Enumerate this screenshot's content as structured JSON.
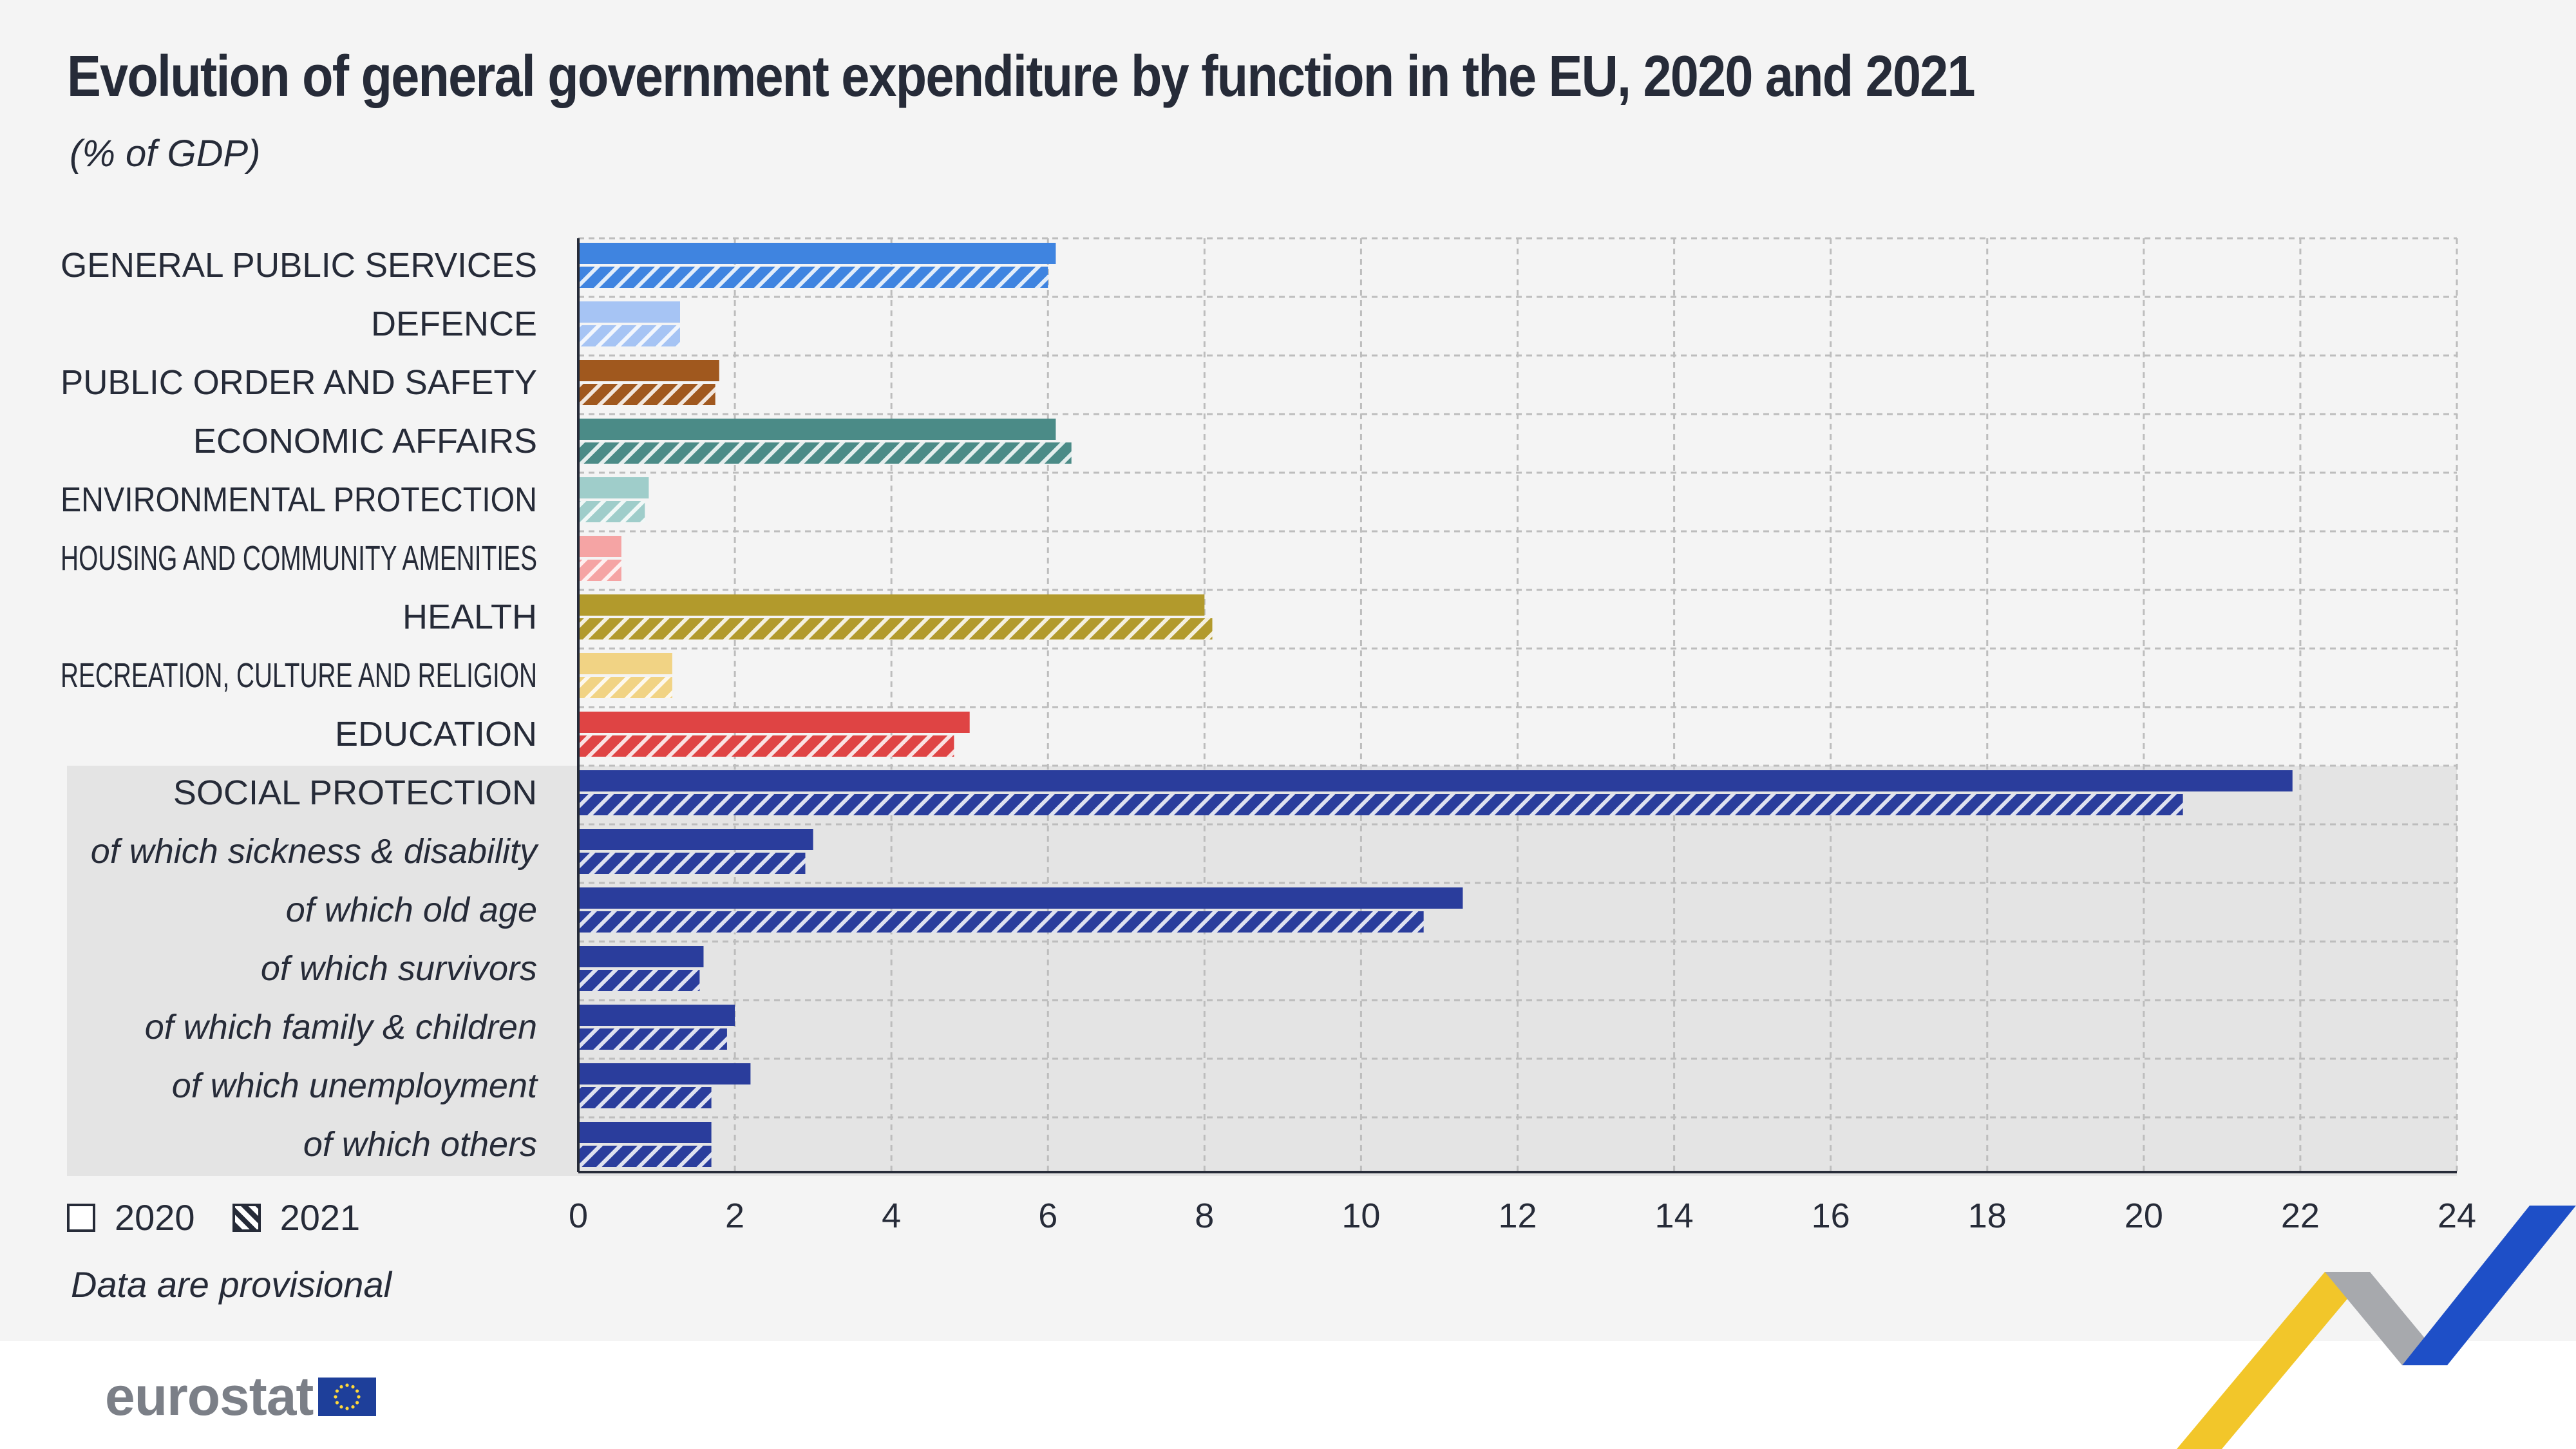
{
  "title": "Evolution of general government expenditure by function in the EU, 2020 and 2021",
  "subtitle": "(% of GDP)",
  "note": "Data are provisional",
  "logo_text": "eurostat",
  "legend": {
    "series_2020": "2020",
    "series_2021": "2021"
  },
  "chart_data": {
    "type": "bar",
    "orientation": "horizontal",
    "categories": [
      "GENERAL PUBLIC SERVICES",
      "DEFENCE",
      "PUBLIC ORDER AND SAFETY",
      "ECONOMIC AFFAIRS",
      "ENVIRONMENTAL PROTECTION",
      "HOUSING AND COMMUNITY AMENITIES",
      "HEALTH",
      "RECREATION, CULTURE AND RELIGION",
      "EDUCATION",
      "SOCIAL PROTECTION",
      "of which sickness & disability",
      "of which old age",
      "of which survivors",
      "of which family & children",
      "of which unemployment",
      "of which others"
    ],
    "category_italic": [
      false,
      false,
      false,
      false,
      false,
      false,
      false,
      false,
      false,
      false,
      true,
      true,
      true,
      true,
      true,
      true
    ],
    "highlighted_group": [
      9,
      10,
      11,
      12,
      13,
      14,
      15
    ],
    "series": [
      {
        "name": "2020",
        "pattern": "solid",
        "values": [
          6.1,
          1.3,
          1.8,
          6.1,
          0.9,
          0.55,
          8.0,
          1.2,
          5.0,
          21.9,
          3.0,
          11.3,
          1.6,
          2.0,
          2.2,
          1.7
        ]
      },
      {
        "name": "2021",
        "pattern": "hatched",
        "values": [
          6.0,
          1.3,
          1.75,
          6.3,
          0.85,
          0.55,
          8.1,
          1.2,
          4.8,
          20.5,
          2.9,
          10.8,
          1.55,
          1.9,
          1.7,
          1.7
        ]
      }
    ],
    "colors": [
      "#3f84e0",
      "#a6c4f4",
      "#a0581e",
      "#4b8b87",
      "#9fcdca",
      "#f5a4a4",
      "#b29a2c",
      "#f1d384",
      "#df4444",
      "#2a3d9c",
      "#2a3d9c",
      "#2a3d9c",
      "#2a3d9c",
      "#2a3d9c",
      "#2a3d9c",
      "#2a3d9c"
    ],
    "xlim": [
      0,
      24
    ],
    "xticks": [
      0,
      2,
      4,
      6,
      8,
      10,
      12,
      14,
      16,
      18,
      20,
      22,
      24
    ],
    "grid": true,
    "legend_position": "bottom-left"
  }
}
